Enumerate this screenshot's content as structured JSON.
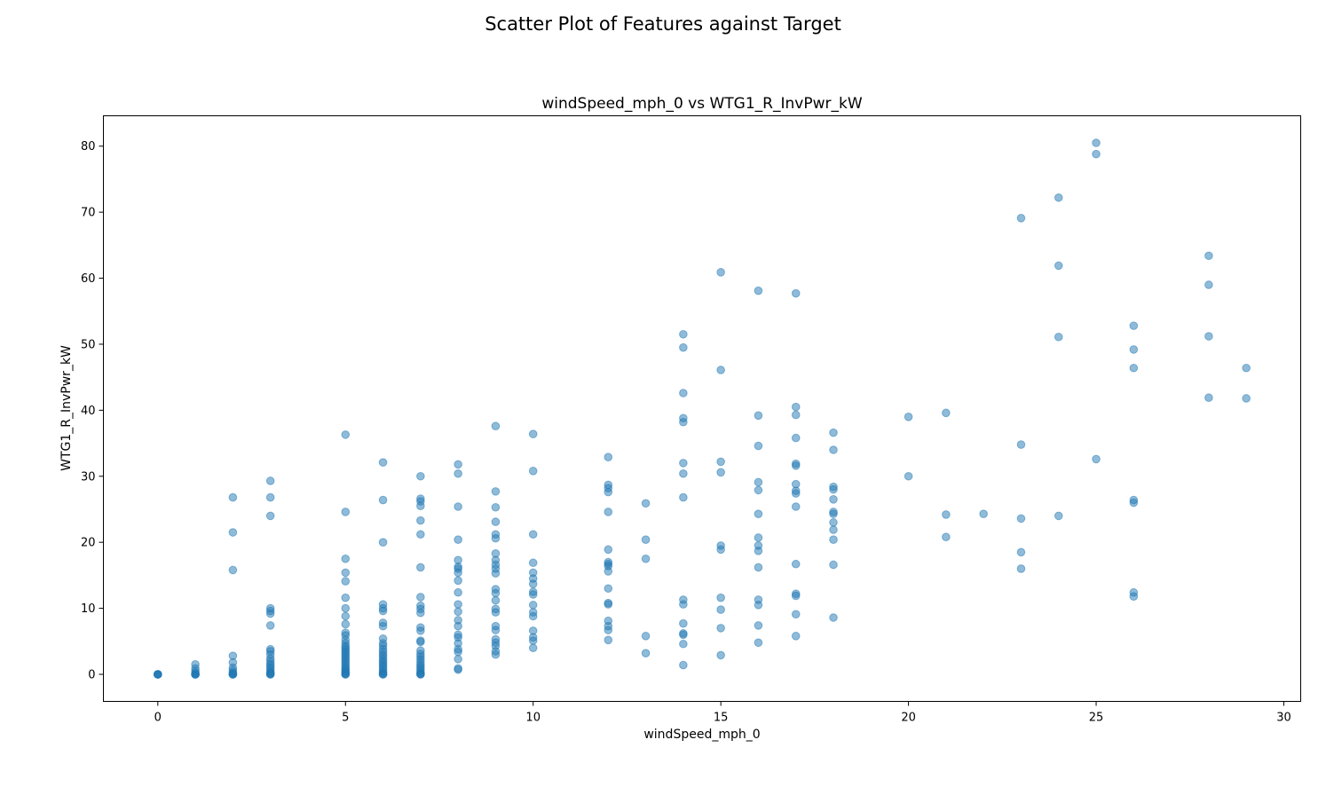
{
  "figure": {
    "suptitle": "Scatter Plot of Features against Target"
  },
  "chart_data": {
    "type": "scatter",
    "title": "windSpeed_mph_0 vs WTG1_R_InvPwr_kW",
    "xlabel": "windSpeed_mph_0",
    "ylabel": "WTG1_R_InvPwr_kW",
    "xlim": [
      -1.45,
      30.45
    ],
    "ylim": [
      -4.1,
      84.6
    ],
    "xticks": [
      0,
      5,
      10,
      15,
      20,
      25,
      30
    ],
    "yticks": [
      0,
      10,
      20,
      30,
      40,
      50,
      60,
      70,
      80
    ],
    "grid": false,
    "marker_color": "#1f77b4",
    "marker_alpha": 0.5,
    "points": [
      [
        0,
        0
      ],
      [
        0,
        0
      ],
      [
        0,
        0
      ],
      [
        0,
        0
      ],
      [
        0,
        0
      ],
      [
        1,
        0
      ],
      [
        1,
        0
      ],
      [
        1,
        0
      ],
      [
        1,
        0
      ],
      [
        1,
        0.2
      ],
      [
        1,
        0.5
      ],
      [
        1,
        0.9
      ],
      [
        1,
        1.5
      ],
      [
        2,
        0
      ],
      [
        2,
        0
      ],
      [
        2,
        0
      ],
      [
        2,
        0.1
      ],
      [
        2,
        0.3
      ],
      [
        2,
        0.6
      ],
      [
        2,
        1.0
      ],
      [
        2,
        1.8
      ],
      [
        2,
        2.8
      ],
      [
        2,
        15.8
      ],
      [
        2,
        21.5
      ],
      [
        2,
        26.8
      ],
      [
        3,
        0
      ],
      [
        3,
        0
      ],
      [
        3,
        0.1
      ],
      [
        3,
        0.2
      ],
      [
        3,
        0.4
      ],
      [
        3,
        0.7
      ],
      [
        3,
        1.0
      ],
      [
        3,
        1.3
      ],
      [
        3,
        1.6
      ],
      [
        3,
        2.0
      ],
      [
        3,
        2.4
      ],
      [
        3,
        3.0
      ],
      [
        3,
        3.5
      ],
      [
        3,
        3.8
      ],
      [
        3,
        7.4
      ],
      [
        3,
        9.2
      ],
      [
        3,
        9.6
      ],
      [
        3,
        10.0
      ],
      [
        3,
        24.0
      ],
      [
        3,
        26.8
      ],
      [
        3,
        29.3
      ],
      [
        5,
        0
      ],
      [
        5,
        0
      ],
      [
        5,
        0.1
      ],
      [
        5,
        0.2
      ],
      [
        5,
        0.4
      ],
      [
        5,
        0.6
      ],
      [
        5,
        0.8
      ],
      [
        5,
        1.0
      ],
      [
        5,
        1.3
      ],
      [
        5,
        1.6
      ],
      [
        5,
        1.9
      ],
      [
        5,
        2.2
      ],
      [
        5,
        2.5
      ],
      [
        5,
        2.8
      ],
      [
        5,
        3.1
      ],
      [
        5,
        3.4
      ],
      [
        5,
        3.7
      ],
      [
        5,
        4.0
      ],
      [
        5,
        4.3
      ],
      [
        5,
        4.7
      ],
      [
        5,
        5.2
      ],
      [
        5,
        5.9
      ],
      [
        5,
        6.3
      ],
      [
        5,
        7.6
      ],
      [
        5,
        8.8
      ],
      [
        5,
        10.0
      ],
      [
        5,
        11.6
      ],
      [
        5,
        14.1
      ],
      [
        5,
        15.4
      ],
      [
        5,
        17.5
      ],
      [
        5,
        24.6
      ],
      [
        5,
        36.3
      ],
      [
        6,
        0
      ],
      [
        6,
        0
      ],
      [
        6,
        0.1
      ],
      [
        6,
        0.3
      ],
      [
        6,
        0.5
      ],
      [
        6,
        0.8
      ],
      [
        6,
        1.1
      ],
      [
        6,
        1.4
      ],
      [
        6,
        1.7
      ],
      [
        6,
        2.0
      ],
      [
        6,
        2.3
      ],
      [
        6,
        2.7
      ],
      [
        6,
        3.0
      ],
      [
        6,
        3.4
      ],
      [
        6,
        3.8
      ],
      [
        6,
        4.3
      ],
      [
        6,
        4.7
      ],
      [
        6,
        5.4
      ],
      [
        6,
        7.3
      ],
      [
        6,
        7.8
      ],
      [
        6,
        9.6
      ],
      [
        6,
        10.0
      ],
      [
        6,
        10.6
      ],
      [
        6,
        20.0
      ],
      [
        6,
        26.4
      ],
      [
        6,
        32.1
      ],
      [
        7,
        0
      ],
      [
        7,
        0
      ],
      [
        7,
        0.1
      ],
      [
        7,
        0.3
      ],
      [
        7,
        0.6
      ],
      [
        7,
        0.9
      ],
      [
        7,
        1.2
      ],
      [
        7,
        1.5
      ],
      [
        7,
        1.9
      ],
      [
        7,
        2.3
      ],
      [
        7,
        2.7
      ],
      [
        7,
        3.1
      ],
      [
        7,
        3.6
      ],
      [
        7,
        4.9
      ],
      [
        7,
        5.1
      ],
      [
        7,
        6.6
      ],
      [
        7,
        7.1
      ],
      [
        7,
        9.3
      ],
      [
        7,
        9.9
      ],
      [
        7,
        10.4
      ],
      [
        7,
        11.7
      ],
      [
        7,
        16.2
      ],
      [
        7,
        21.2
      ],
      [
        7,
        23.3
      ],
      [
        7,
        25.5
      ],
      [
        7,
        26.2
      ],
      [
        7,
        26.6
      ],
      [
        7,
        30.0
      ],
      [
        8,
        0.7
      ],
      [
        8,
        0.9
      ],
      [
        8,
        2.3
      ],
      [
        8,
        3.4
      ],
      [
        8,
        3.8
      ],
      [
        8,
        4.7
      ],
      [
        8,
        5.6
      ],
      [
        8,
        6.0
      ],
      [
        8,
        7.3
      ],
      [
        8,
        8.2
      ],
      [
        8,
        9.5
      ],
      [
        8,
        10.6
      ],
      [
        8,
        12.4
      ],
      [
        8,
        14.2
      ],
      [
        8,
        15.4
      ],
      [
        8,
        16.0
      ],
      [
        8,
        16.3
      ],
      [
        8,
        17.3
      ],
      [
        8,
        20.4
      ],
      [
        8,
        25.4
      ],
      [
        8,
        30.4
      ],
      [
        8,
        31.8
      ],
      [
        9,
        3.0
      ],
      [
        9,
        3.5
      ],
      [
        9,
        4.3
      ],
      [
        9,
        4.8
      ],
      [
        9,
        5.3
      ],
      [
        9,
        6.7
      ],
      [
        9,
        7.3
      ],
      [
        9,
        9.4
      ],
      [
        9,
        9.9
      ],
      [
        9,
        11.2
      ],
      [
        9,
        12.3
      ],
      [
        9,
        12.9
      ],
      [
        9,
        15.3
      ],
      [
        9,
        16.0
      ],
      [
        9,
        16.6
      ],
      [
        9,
        17.3
      ],
      [
        9,
        18.3
      ],
      [
        9,
        20.6
      ],
      [
        9,
        21.2
      ],
      [
        9,
        23.1
      ],
      [
        9,
        25.3
      ],
      [
        9,
        27.7
      ],
      [
        9,
        37.6
      ],
      [
        10,
        4.0
      ],
      [
        10,
        5.1
      ],
      [
        10,
        5.6
      ],
      [
        10,
        6.6
      ],
      [
        10,
        8.8
      ],
      [
        10,
        9.4
      ],
      [
        10,
        10.5
      ],
      [
        10,
        12.1
      ],
      [
        10,
        12.5
      ],
      [
        10,
        13.7
      ],
      [
        10,
        14.5
      ],
      [
        10,
        15.4
      ],
      [
        10,
        16.9
      ],
      [
        10,
        21.2
      ],
      [
        10,
        30.8
      ],
      [
        10,
        36.4
      ],
      [
        12,
        5.2
      ],
      [
        12,
        6.7
      ],
      [
        12,
        7.3
      ],
      [
        12,
        8.1
      ],
      [
        12,
        10.6
      ],
      [
        12,
        10.8
      ],
      [
        12,
        13.0
      ],
      [
        12,
        15.6
      ],
      [
        12,
        16.4
      ],
      [
        12,
        16.7
      ],
      [
        12,
        17.0
      ],
      [
        12,
        18.9
      ],
      [
        12,
        24.6
      ],
      [
        12,
        27.6
      ],
      [
        12,
        28.2
      ],
      [
        12,
        28.7
      ],
      [
        12,
        32.9
      ],
      [
        13,
        3.2
      ],
      [
        13,
        5.8
      ],
      [
        13,
        17.5
      ],
      [
        13,
        20.4
      ],
      [
        13,
        25.9
      ],
      [
        14,
        1.4
      ],
      [
        14,
        4.6
      ],
      [
        14,
        6.0
      ],
      [
        14,
        6.2
      ],
      [
        14,
        7.7
      ],
      [
        14,
        10.6
      ],
      [
        14,
        11.3
      ],
      [
        14,
        26.8
      ],
      [
        14,
        30.4
      ],
      [
        14,
        32.0
      ],
      [
        14,
        38.2
      ],
      [
        14,
        38.8
      ],
      [
        14,
        42.6
      ],
      [
        14,
        49.5
      ],
      [
        14,
        51.5
      ],
      [
        15,
        2.9
      ],
      [
        15,
        7.0
      ],
      [
        15,
        9.8
      ],
      [
        15,
        11.6
      ],
      [
        15,
        18.9
      ],
      [
        15,
        19.5
      ],
      [
        15,
        30.6
      ],
      [
        15,
        32.2
      ],
      [
        15,
        46.1
      ],
      [
        15,
        60.9
      ],
      [
        16,
        4.8
      ],
      [
        16,
        7.4
      ],
      [
        16,
        10.5
      ],
      [
        16,
        11.3
      ],
      [
        16,
        16.2
      ],
      [
        16,
        18.7
      ],
      [
        16,
        19.5
      ],
      [
        16,
        20.7
      ],
      [
        16,
        24.3
      ],
      [
        16,
        27.9
      ],
      [
        16,
        29.1
      ],
      [
        16,
        34.6
      ],
      [
        16,
        39.2
      ],
      [
        16,
        58.1
      ],
      [
        17,
        5.8
      ],
      [
        17,
        9.1
      ],
      [
        17,
        11.9
      ],
      [
        17,
        12.2
      ],
      [
        17,
        16.7
      ],
      [
        17,
        25.4
      ],
      [
        17,
        27.4
      ],
      [
        17,
        27.8
      ],
      [
        17,
        28.8
      ],
      [
        17,
        31.6
      ],
      [
        17,
        31.9
      ],
      [
        17,
        35.8
      ],
      [
        17,
        39.3
      ],
      [
        17,
        40.5
      ],
      [
        17,
        57.7
      ],
      [
        18,
        8.6
      ],
      [
        18,
        16.6
      ],
      [
        18,
        20.4
      ],
      [
        18,
        21.9
      ],
      [
        18,
        23.0
      ],
      [
        18,
        24.3
      ],
      [
        18,
        24.6
      ],
      [
        18,
        26.5
      ],
      [
        18,
        28.0
      ],
      [
        18,
        28.4
      ],
      [
        18,
        34.0
      ],
      [
        18,
        36.6
      ],
      [
        20,
        30.0
      ],
      [
        20,
        39.0
      ],
      [
        21,
        20.8
      ],
      [
        21,
        24.2
      ],
      [
        21,
        39.6
      ],
      [
        22,
        24.3
      ],
      [
        23,
        16.0
      ],
      [
        23,
        18.5
      ],
      [
        23,
        23.6
      ],
      [
        23,
        34.8
      ],
      [
        23,
        69.1
      ],
      [
        24,
        24.0
      ],
      [
        24,
        51.1
      ],
      [
        24,
        61.9
      ],
      [
        24,
        72.2
      ],
      [
        25,
        32.6
      ],
      [
        25,
        78.8
      ],
      [
        25,
        80.5
      ],
      [
        26,
        11.8
      ],
      [
        26,
        12.4
      ],
      [
        26,
        26.0
      ],
      [
        26,
        26.4
      ],
      [
        26,
        46.4
      ],
      [
        26,
        49.2
      ],
      [
        26,
        52.8
      ],
      [
        28,
        41.9
      ],
      [
        28,
        51.2
      ],
      [
        28,
        59.0
      ],
      [
        28,
        63.4
      ],
      [
        29,
        41.8
      ],
      [
        29,
        46.4
      ]
    ]
  }
}
